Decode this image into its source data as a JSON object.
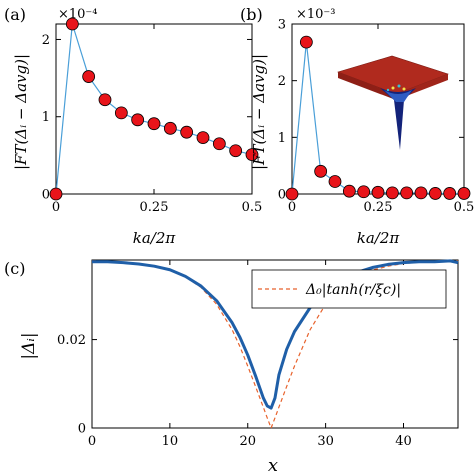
{
  "chart_data": [
    {
      "type": "line",
      "panel_label": "(a)",
      "exponent_label": "×10⁻⁴",
      "ylabel": "|FT(Δᵢ − Δavg)|",
      "xlabel": "ka/2π",
      "xlim": [
        0,
        0.5
      ],
      "ylim": [
        0,
        2.2
      ],
      "xticks": [
        0,
        0.25,
        0.5
      ],
      "xtick_labels": [
        "0",
        "0.25",
        "0.5"
      ],
      "yticks": [
        0,
        1,
        2
      ],
      "ytick_labels": [
        "0",
        "1",
        "2"
      ],
      "line_color": "#4a9fd8",
      "marker_color": "#e8141a",
      "x": [
        0,
        0.0417,
        0.0833,
        0.125,
        0.1667,
        0.2083,
        0.25,
        0.2917,
        0.3333,
        0.375,
        0.4167,
        0.4583,
        0.5
      ],
      "y": [
        0.0,
        2.2,
        1.52,
        1.22,
        1.05,
        0.96,
        0.91,
        0.85,
        0.8,
        0.73,
        0.65,
        0.56,
        0.51
      ]
    },
    {
      "type": "line",
      "panel_label": "(b)",
      "exponent_label": "×10⁻³",
      "ylabel": "|FT(Δᵢ − Δavg)|",
      "xlabel": "ka/2π",
      "xlim": [
        0,
        0.5
      ],
      "ylim": [
        0,
        3
      ],
      "xticks": [
        0,
        0.25,
        0.5
      ],
      "xtick_labels": [
        "0",
        "0.25",
        "0.5"
      ],
      "yticks": [
        0,
        1,
        2,
        3
      ],
      "ytick_labels": [
        "0",
        "1",
        "2",
        "3"
      ],
      "line_color": "#4a9fd8",
      "marker_color": "#e8141a",
      "x": [
        0,
        0.0417,
        0.0833,
        0.125,
        0.1667,
        0.2083,
        0.25,
        0.2917,
        0.3333,
        0.375,
        0.4167,
        0.4583,
        0.5
      ],
      "y": [
        0.0,
        2.68,
        0.4,
        0.22,
        0.05,
        0.04,
        0.03,
        0.02,
        0.02,
        0.02,
        0.01,
        0.01,
        0.01
      ]
    },
    {
      "type": "line",
      "panel_label": "(c)",
      "ylabel": "|Δᵢ|",
      "xlabel": "x",
      "xlim": [
        0,
        47
      ],
      "ylim": [
        0,
        0.038
      ],
      "xticks": [
        0,
        10,
        20,
        30,
        40
      ],
      "xtick_labels": [
        "0",
        "10",
        "20",
        "30",
        "40"
      ],
      "yticks": [
        0,
        0.02
      ],
      "ytick_labels": [
        "0",
        "0.02"
      ],
      "legend_placement": "top-right",
      "series": [
        {
          "role": "data",
          "color": "#1f5fa8",
          "x": [
            0,
            2,
            4,
            6,
            8,
            10,
            12,
            14,
            16,
            18,
            19,
            20,
            21,
            22,
            22.5,
            23,
            23.5,
            24,
            25,
            26,
            28,
            30,
            32,
            34,
            36,
            38,
            40,
            42,
            44,
            46,
            47
          ],
          "y": [
            0.0376,
            0.0376,
            0.0374,
            0.0371,
            0.0366,
            0.0358,
            0.0343,
            0.0321,
            0.0288,
            0.0238,
            0.0205,
            0.0165,
            0.0118,
            0.0068,
            0.005,
            0.0045,
            0.0068,
            0.012,
            0.0178,
            0.0218,
            0.0272,
            0.031,
            0.0335,
            0.0352,
            0.0363,
            0.037,
            0.0374,
            0.0376,
            0.0376,
            0.0378,
            0.0374
          ]
        },
        {
          "role": "fit",
          "name": "Δ₀|tanh(r/ξc)|",
          "color": "#e8622c",
          "x": [
            0,
            2,
            4,
            6,
            8,
            10,
            12,
            14,
            16,
            18,
            19,
            20,
            21,
            22,
            22.5,
            23,
            23.5,
            24,
            25,
            26,
            28,
            30,
            32,
            34,
            36,
            38,
            40,
            42,
            44,
            46,
            47
          ],
          "y": [
            0.0378,
            0.0377,
            0.0375,
            0.0372,
            0.0366,
            0.0357,
            0.0342,
            0.0318,
            0.028,
            0.0222,
            0.0184,
            0.014,
            0.0094,
            0.0047,
            0.0023,
            0.0,
            0.0023,
            0.0047,
            0.0094,
            0.014,
            0.0222,
            0.028,
            0.0318,
            0.0342,
            0.0357,
            0.0366,
            0.0372,
            0.0375,
            0.0377,
            0.0378,
            0.0378
          ]
        }
      ]
    }
  ]
}
